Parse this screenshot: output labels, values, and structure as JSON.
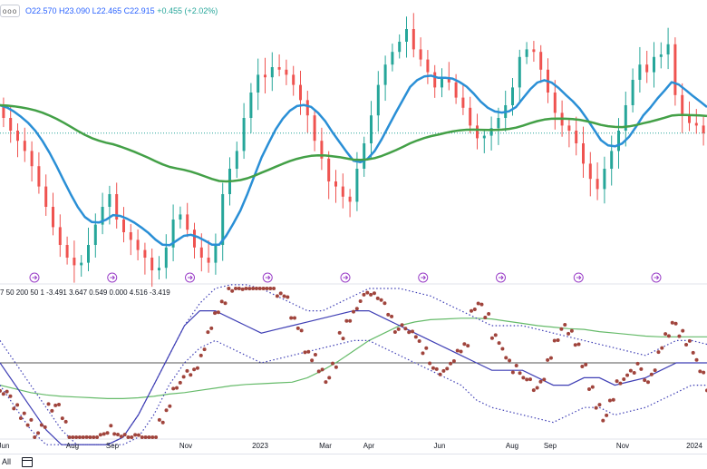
{
  "legend": {
    "menu_icon": "more-dots-icon",
    "menu_text": "ooo",
    "open": "O22.570",
    "high": "H23.090",
    "low": "L22.465",
    "close": "C22.915",
    "change": "+0.455 (+2.02%)"
  },
  "indicator_legend": "7 50 200 50 1  -3.491  3.647  0.549  0.000  4.516  -3.419",
  "bottom_bar": {
    "range_label": "All",
    "calendar_icon": "calendar-icon"
  },
  "chart_data": {
    "type": "line",
    "x_labels": [
      "Jun",
      "Aug",
      "Sep",
      "Nov",
      "2023",
      "Mar",
      "Apr",
      "Jun",
      "Aug",
      "Sep",
      "Nov",
      "2024"
    ],
    "event_markers": 9,
    "price_pane": {
      "last_price_line": 22.9,
      "y_range": [
        17.0,
        27.5
      ],
      "close": [
        24,
        23.5,
        23,
        22.6,
        22.2,
        21.6,
        20.8,
        20,
        19.2,
        18.5,
        18,
        17.7,
        17.8,
        18.5,
        19.3,
        20,
        20.5,
        19.5,
        19,
        18.7,
        18.3,
        18,
        17.5,
        17.6,
        18.4,
        19.5,
        19.7,
        19.1,
        18.4,
        18,
        17.8,
        18.5,
        20.5,
        21.5,
        22.2,
        23.5,
        24.5,
        25.2,
        25.1,
        25.5,
        25.4,
        25.2,
        24.8,
        24.2,
        23.6,
        22.6,
        21.9,
        21,
        20.8,
        20.4,
        20.2,
        21.5,
        22.5,
        23.6,
        24.8,
        25.6,
        26.1,
        26.5,
        27,
        26.2,
        25.8,
        25.3,
        24.7,
        25.1,
        24.9,
        24.3,
        23.9,
        23.2,
        22.7,
        22.8,
        23.1,
        23.5,
        24,
        24.7,
        25.9,
        26.2,
        26.1,
        25.4,
        24.5,
        23.7,
        23.2,
        23,
        22.5,
        21.7,
        21.1,
        20.7,
        21.5,
        22.2,
        23,
        24,
        25,
        25.6,
        25.3,
        25.9,
        26,
        26.4,
        24.4,
        23.6,
        23.3,
        23.2,
        22.9
      ]
    },
    "indicator_pane": {
      "y_range": [
        -10,
        10
      ],
      "zero_line": 0,
      "points": [
        -3.5,
        -4.5,
        -5.5,
        -7,
        -8,
        -10,
        -8.5,
        -6,
        -5.5,
        -8,
        -10,
        -10.2,
        -10,
        -10,
        -10,
        -9.5,
        -9,
        -9.5,
        -9.5,
        -10,
        -10.2,
        -10.3,
        -10.5,
        -8,
        -6,
        -4,
        -2.5,
        -1.5,
        -0.3,
        1.5,
        4,
        7,
        8.5,
        9.5,
        10,
        10.2,
        10.5,
        10.5,
        10.5,
        10.2,
        9.5,
        8.5,
        6,
        4.5,
        2,
        0.5,
        -1.5,
        -2.5,
        0,
        3.5,
        6,
        7.5,
        8.5,
        9,
        9.3,
        8.5,
        6.5,
        4.5,
        5,
        4,
        3.5,
        2,
        0,
        -1,
        -0.5,
        0,
        1,
        3,
        6.5,
        7.5,
        6,
        4,
        2.5,
        0.5,
        -1,
        -1.5,
        -2.5,
        -3,
        -2,
        1,
        3,
        4.5,
        4.5,
        3,
        0,
        -3,
        -5.5,
        -7.5,
        -5,
        -3,
        -2,
        -1,
        -0.5,
        -2.5,
        -1.5,
        2,
        4,
        5,
        4,
        3,
        1,
        -1,
        -3
      ],
      "band_upper": [
        3,
        0,
        -3,
        -6,
        -9,
        -11,
        -11,
        -11,
        -10,
        -7,
        -3,
        1,
        5,
        8,
        10,
        10.5,
        10.5,
        10,
        9,
        8,
        7,
        7,
        8,
        9,
        10,
        10,
        10,
        9.5,
        9,
        8,
        7,
        6,
        5,
        5,
        5,
        4.5,
        4,
        3.5,
        3,
        2.5,
        2,
        1.5,
        1,
        2,
        3,
        3,
        2.5
      ],
      "band_center": [
        0,
        -3,
        -6,
        -9,
        -11,
        -11,
        -11,
        -11,
        -10,
        -7,
        -3,
        1,
        5,
        7,
        7,
        6,
        5,
        4,
        4.5,
        5,
        5.5,
        6,
        6.5,
        7,
        7,
        6,
        5,
        4,
        3,
        2,
        1,
        0,
        -1,
        -1,
        -1,
        -2,
        -3,
        -3,
        -2,
        -2,
        -3,
        -2.5,
        -2,
        -1,
        0,
        0,
        0
      ],
      "band_lower": [
        -3,
        -6,
        -9,
        -11,
        -11,
        -11,
        -11,
        -11,
        -11,
        -10,
        -7,
        -3,
        0,
        2,
        3,
        2,
        1,
        0,
        0.5,
        1,
        1.5,
        2,
        2.5,
        3,
        3,
        2,
        1,
        0,
        -1,
        -2,
        -3,
        -5,
        -6,
        -6.5,
        -7,
        -7.5,
        -8,
        -7,
        -6,
        -6,
        -7,
        -6.5,
        -6,
        -5,
        -4,
        -3,
        -3
      ],
      "long_average": [
        -3,
        -3.5,
        -4,
        -4.3,
        -4.5,
        -4.6,
        -4.7,
        -4.8,
        -4.8,
        -4.7,
        -4.5,
        -4.2,
        -4,
        -3.7,
        -3.4,
        -3.1,
        -2.9,
        -2.8,
        -2.7,
        -2.6,
        -2,
        -1,
        0.2,
        1.6,
        3,
        4,
        5,
        5.5,
        5.8,
        5.9,
        6,
        6,
        5.9,
        5.6,
        5.3,
        5,
        4.8,
        4.6,
        4.5,
        4.2,
        4,
        3.8,
        3.6,
        3.5,
        3.5,
        3.5,
        3.5
      ]
    }
  },
  "colors": {
    "up": "#26a69a",
    "down": "#ef5350",
    "ma_fast": "#2a8fd6",
    "ma_slow": "#43a047",
    "dots": "#a0443c",
    "bands": "#3f3fb5",
    "long_avg": "#66bb6a",
    "markers": "#9b40c8"
  }
}
